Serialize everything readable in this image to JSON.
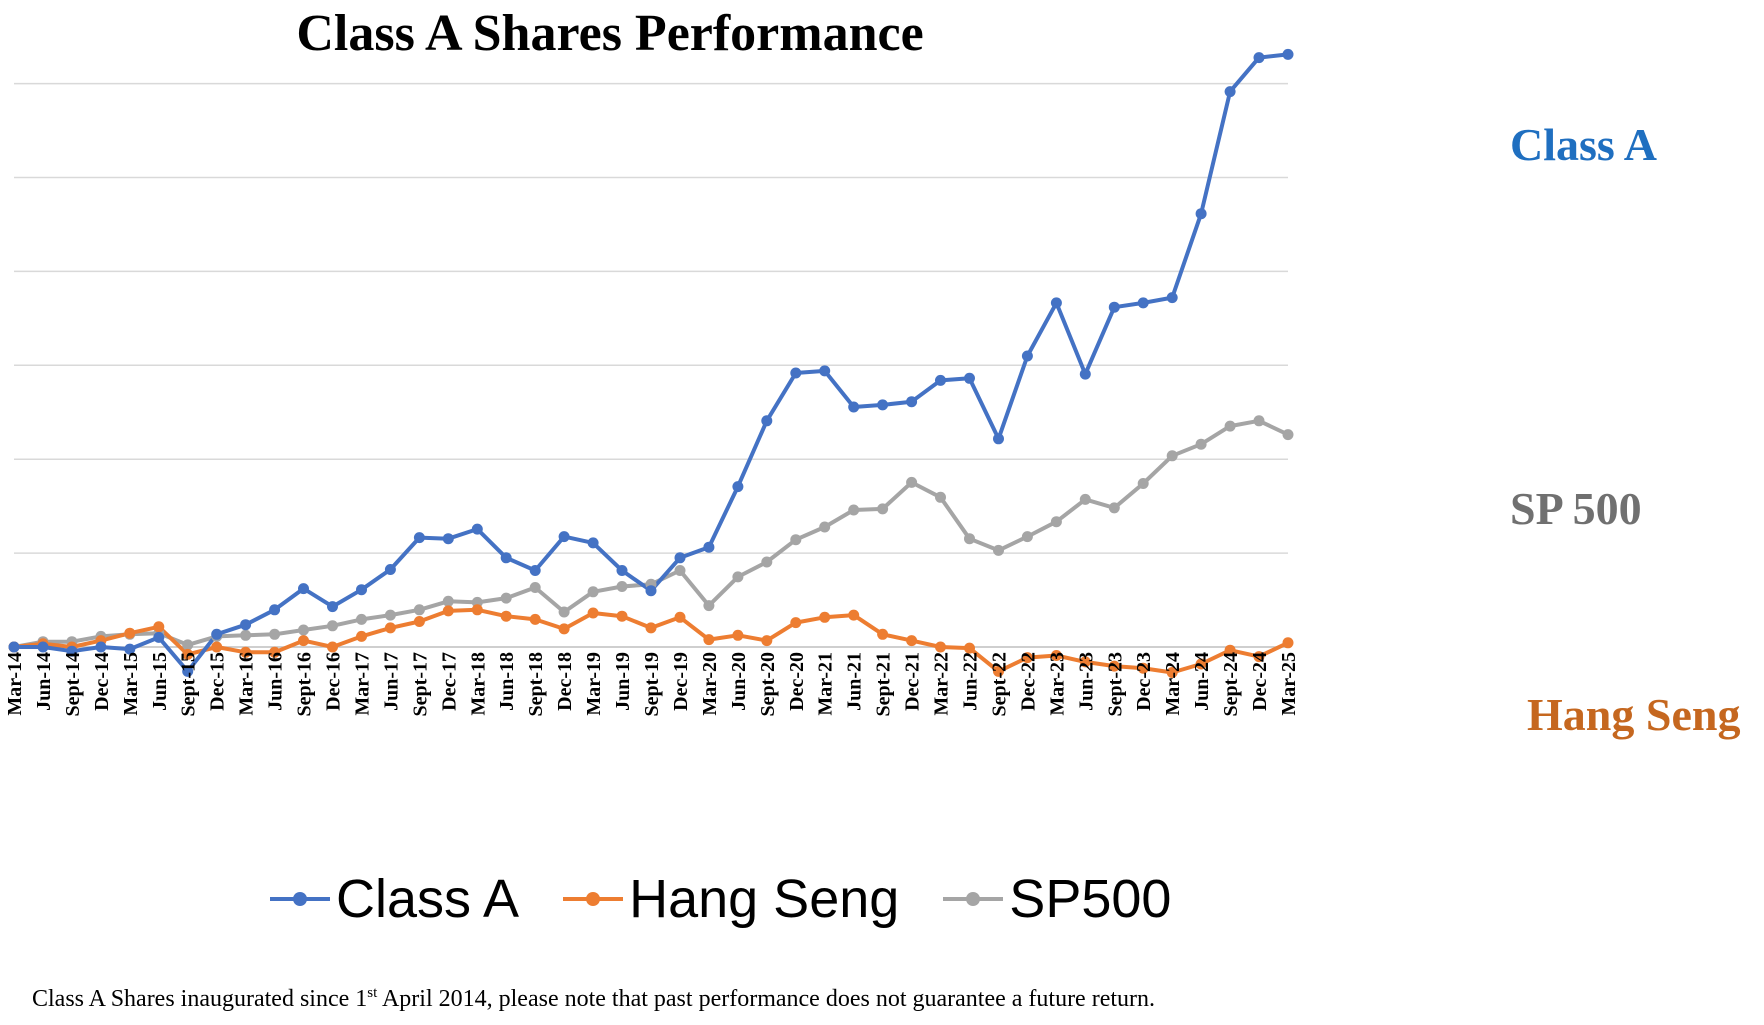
{
  "chart_data": {
    "type": "line",
    "title": "Class A Shares Performance",
    "xlabel": "",
    "ylabel": "",
    "grid": true,
    "legend_position": "bottom",
    "x": [
      "Mar-14",
      "Jun-14",
      "Sept-14",
      "Dec-14",
      "Mar-15",
      "Jun-15",
      "Sept-15",
      "Dec-15",
      "Mar-16",
      "Jun-16",
      "Sept-16",
      "Dec-16",
      "Mar-17",
      "Jun-17",
      "Sept-17",
      "Dec-17",
      "Mar-18",
      "Jun-18",
      "Sept-18",
      "Dec-18",
      "Mar-19",
      "Jun-19",
      "Sept-19",
      "Dec-19",
      "Mar-20",
      "Jun-20",
      "Sept-20",
      "Dec-20",
      "Mar-21",
      "Jun-21",
      "Sept-21",
      "Dec-21",
      "Mar-22",
      "Jun-22",
      "Sept-22",
      "Dec-22",
      "Mar-23",
      "Jun-23",
      "Sept-23",
      "Dec-23",
      "Mar-24",
      "Jun-24",
      "Sept-24",
      "Dec-24",
      "Mar-25"
    ],
    "series": [
      {
        "name": "Class A",
        "color": "#4472C4",
        "values": [
          0.0,
          0.0,
          -0.4,
          0.0,
          -0.2,
          0.9,
          -2.3,
          1.2,
          2.1,
          3.5,
          5.5,
          3.8,
          5.4,
          7.3,
          10.3,
          10.2,
          11.1,
          8.4,
          7.2,
          10.4,
          9.8,
          7.2,
          5.3,
          8.4,
          9.4,
          15.1,
          21.3,
          25.8,
          26.0,
          22.6,
          22.8,
          23.1,
          25.1,
          25.3,
          19.6,
          27.4,
          32.4,
          25.7,
          32.0,
          32.4,
          32.9,
          40.8,
          52.3,
          55.5,
          55.8
        ]
      },
      {
        "name": "Hang Seng",
        "color": "#ED7D31",
        "values": [
          0.0,
          0.3,
          0.0,
          0.6,
          1.3,
          1.9,
          -0.7,
          0.0,
          -0.5,
          -0.5,
          0.6,
          0.0,
          1.0,
          1.8,
          2.4,
          3.4,
          3.5,
          2.9,
          2.6,
          1.7,
          3.2,
          2.9,
          1.8,
          2.8,
          0.7,
          1.1,
          0.6,
          2.3,
          2.8,
          3.0,
          1.2,
          0.6,
          0.0,
          -0.1,
          -2.3,
          -1.0,
          -0.8,
          -1.4,
          -1.8,
          -2.0,
          -2.4,
          -1.6,
          -0.3,
          -0.9,
          0.4
        ]
      },
      {
        "name": "SP500",
        "color": "#A5A5A5",
        "values": [
          0.0,
          0.5,
          0.5,
          1.0,
          1.2,
          1.3,
          0.2,
          1.0,
          1.1,
          1.2,
          1.6,
          2.0,
          2.6,
          3.0,
          3.5,
          4.3,
          4.2,
          4.6,
          5.6,
          3.3,
          5.2,
          5.7,
          5.9,
          7.2,
          3.9,
          6.6,
          8.0,
          10.1,
          11.3,
          12.9,
          13.0,
          15.5,
          14.1,
          10.2,
          9.1,
          10.4,
          11.8,
          13.9,
          13.1,
          15.4,
          18.0,
          19.1,
          20.8,
          21.3,
          20.0
        ]
      }
    ],
    "ylim": [
      -2.5,
      60
    ],
    "end_labels": [
      "Class A",
      "SP 500",
      "Hang Seng"
    ]
  },
  "footnote": {
    "before": "Class A Shares inaugurated since 1",
    "sup": "st",
    "after": " April 2014, please note that past performance does not guarantee a future return."
  }
}
